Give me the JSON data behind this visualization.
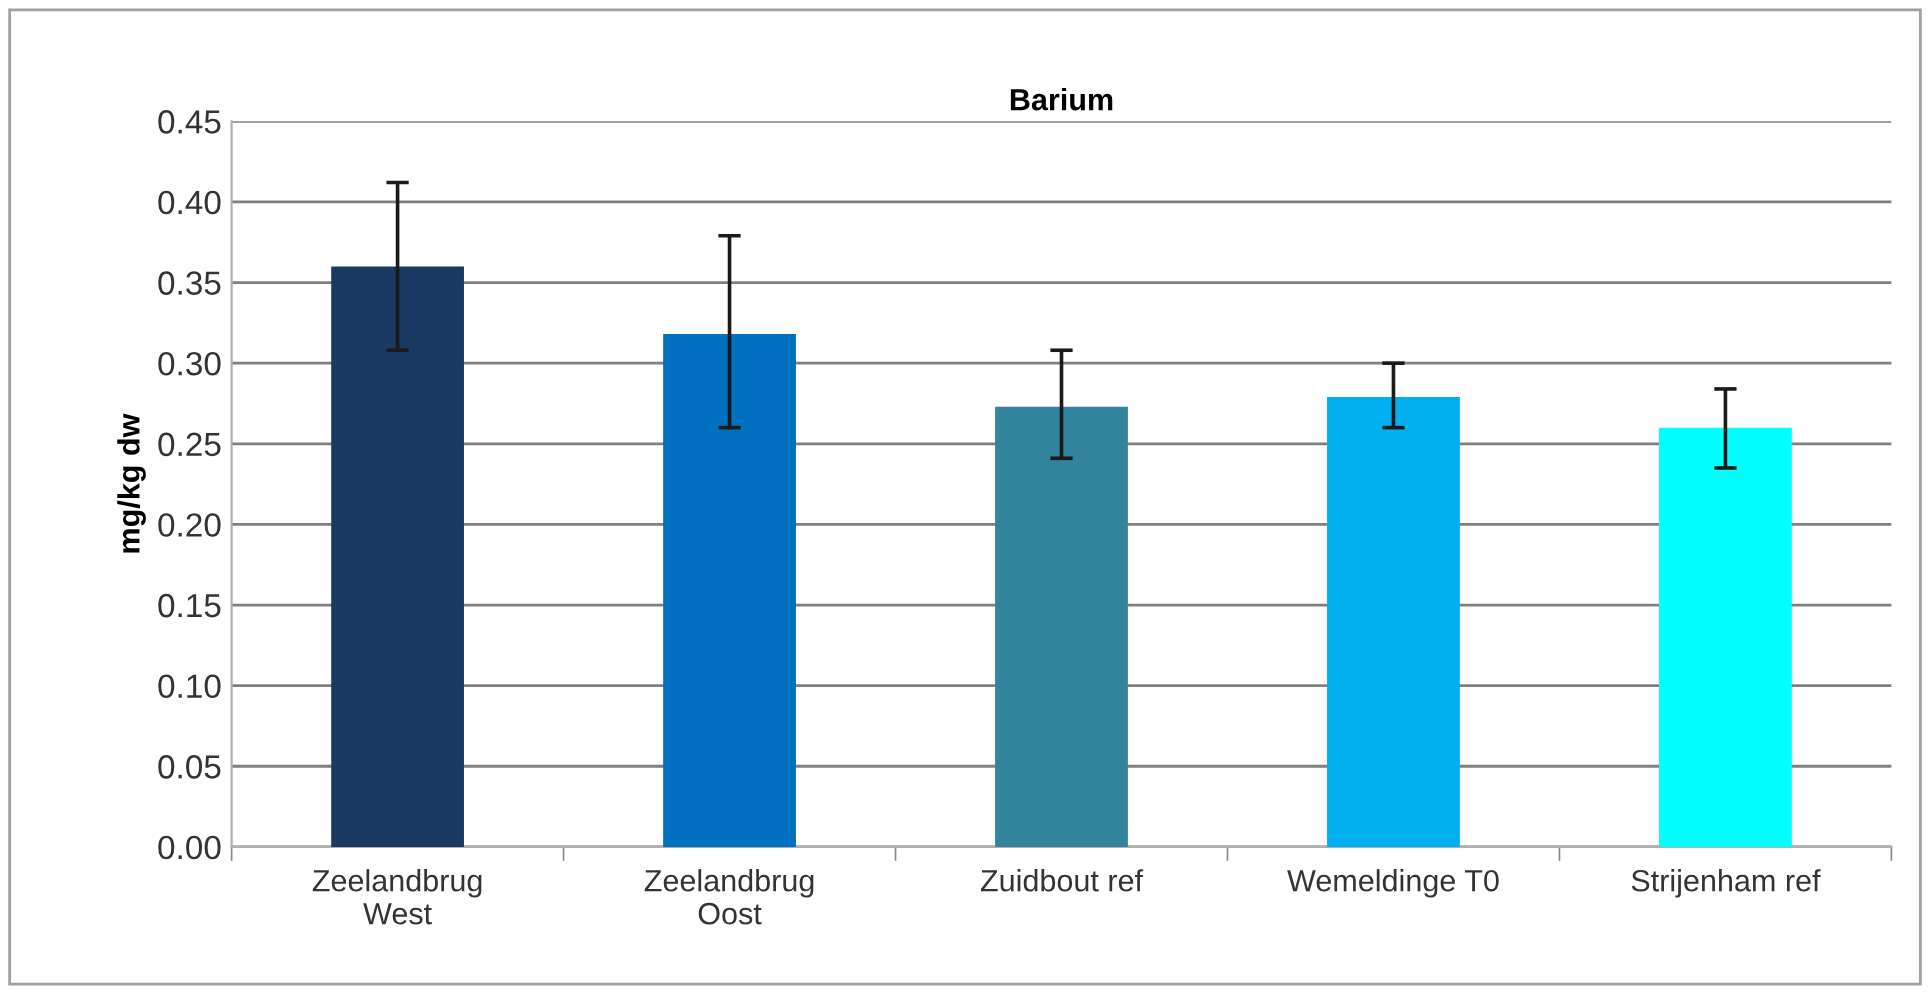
{
  "chart_data": {
    "type": "bar",
    "title": "Barium",
    "ylabel": "mg/kg dw",
    "categories": [
      "Zeelandbrug\nWest",
      "Zeelandbrug\nOost",
      "Zuidbout ref",
      "Wemeldinge T0",
      "Strijenham ref"
    ],
    "values": [
      0.36,
      0.318,
      0.273,
      0.279,
      0.26
    ],
    "errors": [
      [
        0.308,
        0.412
      ],
      [
        0.26,
        0.379
      ],
      [
        0.241,
        0.308
      ],
      [
        0.26,
        0.3
      ],
      [
        0.235,
        0.284
      ]
    ],
    "colors": [
      "#1b3a63",
      "#0070c0",
      "#31849b",
      "#00b0f0",
      "#00ffff"
    ],
    "ylim": [
      0,
      0.45
    ],
    "yticks": [
      {
        "value": 0,
        "label": "0.00"
      },
      {
        "value": 0.05,
        "label": "0.05"
      },
      {
        "value": 0.1,
        "label": "0.10"
      },
      {
        "value": 0.15,
        "label": "0.15"
      },
      {
        "value": 0.2,
        "label": "0.20"
      },
      {
        "value": 0.25,
        "label": "0.25"
      },
      {
        "value": 0.3,
        "label": "0.30"
      },
      {
        "value": 0.35,
        "label": "0.35"
      },
      {
        "value": 0.4,
        "label": "0.40"
      },
      {
        "value": 0.45,
        "label": "0.45"
      }
    ],
    "grid": "y"
  }
}
